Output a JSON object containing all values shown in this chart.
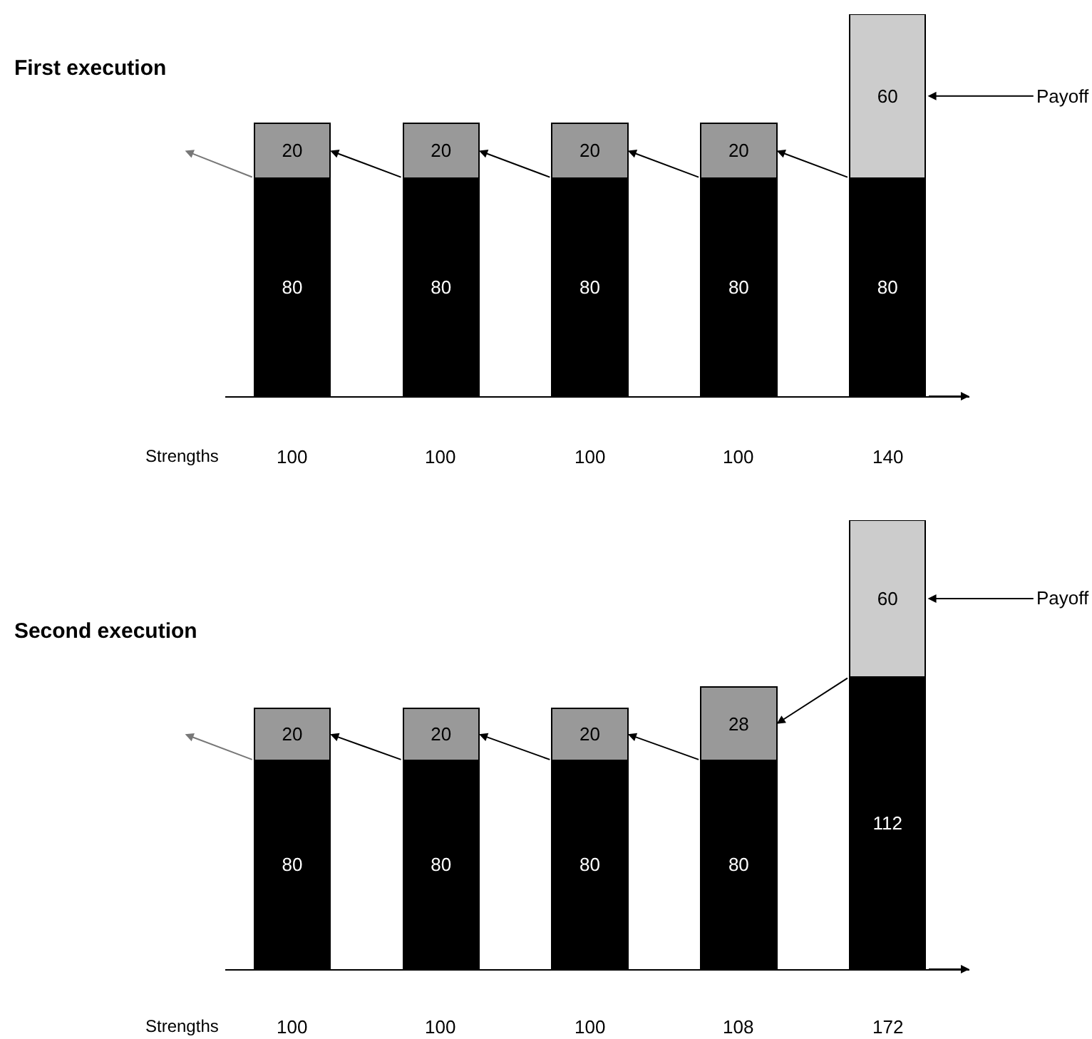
{
  "chart_data": [
    {
      "type": "bar",
      "title": "First execution",
      "categories": [
        null,
        null,
        null,
        null,
        null
      ],
      "stacked": true,
      "data_labels": true,
      "series": [
        {
          "colors": [
            "#000000",
            "#000000",
            "#000000",
            "#000000",
            "#000000"
          ],
          "values": [
            80,
            80,
            80,
            80,
            80
          ]
        },
        {
          "colors": [
            "#999999",
            "#999999",
            "#999999",
            "#999999",
            "#cccccc"
          ],
          "values": [
            20,
            20,
            20,
            20,
            60
          ]
        }
      ],
      "totals": [
        "100",
        "100",
        "100",
        "100",
        "140"
      ],
      "annotations": [
        "Strengths",
        "Payoff"
      ]
    },
    {
      "type": "bar",
      "title": "Second execution",
      "categories": [
        null,
        null,
        null,
        null,
        null
      ],
      "stacked": true,
      "data_labels": true,
      "series": [
        {
          "colors": [
            "#000000",
            "#000000",
            "#000000",
            "#000000",
            "#000000"
          ],
          "values": [
            80,
            80,
            80,
            80,
            112
          ]
        },
        {
          "colors": [
            "#999999",
            "#999999",
            "#999999",
            "#999999",
            "#cccccc"
          ],
          "values": [
            20,
            20,
            20,
            28,
            60
          ]
        }
      ],
      "totals": [
        "100",
        "100",
        "100",
        "108",
        "172"
      ],
      "annotations": [
        "Strengths",
        "Payoff"
      ]
    }
  ]
}
